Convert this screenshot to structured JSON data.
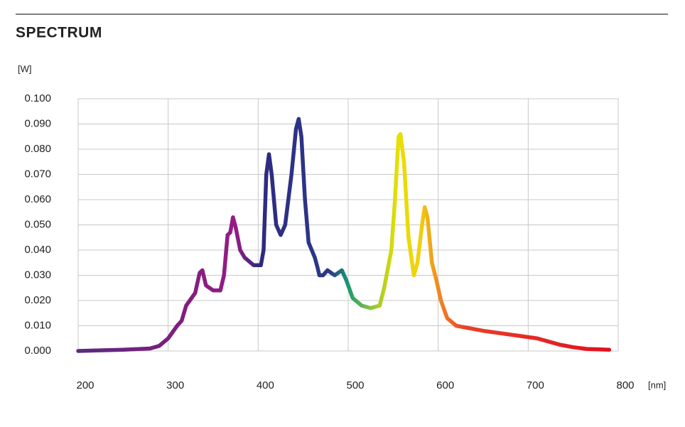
{
  "chart_data": {
    "type": "line",
    "title": "SPECTRUM",
    "y_unit": "[W]",
    "x_unit": "[nm]",
    "x": [
      200,
      250,
      280,
      290,
      300,
      310,
      315,
      320,
      330,
      335,
      338,
      342,
      350,
      358,
      362,
      366,
      369,
      372,
      375,
      380,
      385,
      395,
      403,
      406,
      409,
      412,
      415,
      420,
      425,
      430,
      437,
      442,
      445,
      448,
      452,
      456,
      463,
      466,
      468,
      472,
      477,
      485,
      493,
      498,
      505,
      515,
      525,
      535,
      540,
      548,
      552,
      556,
      558,
      562,
      567,
      573,
      577,
      582,
      585,
      588,
      593,
      598,
      603,
      610,
      620,
      650,
      660,
      700,
      710,
      720,
      735,
      750,
      765,
      790
    ],
    "series": [
      {
        "values": [
          0.0,
          0.0005,
          0.001,
          0.002,
          0.005,
          0.01,
          0.012,
          0.018,
          0.023,
          0.031,
          0.032,
          0.026,
          0.024,
          0.024,
          0.03,
          0.046,
          0.047,
          0.053,
          0.049,
          0.04,
          0.037,
          0.034,
          0.034,
          0.04,
          0.07,
          0.078,
          0.07,
          0.05,
          0.046,
          0.05,
          0.07,
          0.088,
          0.092,
          0.085,
          0.06,
          0.043,
          0.037,
          0.033,
          0.03,
          0.03,
          0.032,
          0.03,
          0.032,
          0.028,
          0.021,
          0.018,
          0.017,
          0.018,
          0.025,
          0.04,
          0.06,
          0.085,
          0.086,
          0.075,
          0.045,
          0.03,
          0.035,
          0.05,
          0.057,
          0.053,
          0.035,
          0.028,
          0.02,
          0.013,
          0.01,
          0.008,
          0.0075,
          0.0055,
          0.005,
          0.004,
          0.0025,
          0.0015,
          0.0008,
          0.0005
        ],
        "color_stops": [
          {
            "at": 200,
            "color": "#5a2a7e"
          },
          {
            "at": 300,
            "color": "#7a1f7e"
          },
          {
            "at": 375,
            "color": "#951c86"
          },
          {
            "at": 400,
            "color": "#2f2a80"
          },
          {
            "at": 480,
            "color": "#2c3a88"
          },
          {
            "at": 500,
            "color": "#1a9a70"
          },
          {
            "at": 525,
            "color": "#8cc43c"
          },
          {
            "at": 555,
            "color": "#e8e000"
          },
          {
            "at": 580,
            "color": "#f0d010"
          },
          {
            "at": 600,
            "color": "#f08a20"
          },
          {
            "at": 630,
            "color": "#e8402a"
          },
          {
            "at": 790,
            "color": "#e0101e"
          }
        ]
      }
    ],
    "xlim": [
      200,
      800
    ],
    "ylim": [
      0,
      0.1
    ],
    "xticks": [
      200,
      300,
      400,
      500,
      600,
      700,
      800
    ],
    "yticks": [
      {
        "value": 0,
        "label": "0.000"
      },
      {
        "value": 0.01,
        "label": "0.010"
      },
      {
        "value": 0.02,
        "label": "0.020"
      },
      {
        "value": 0.03,
        "label": "0.030"
      },
      {
        "value": 0.04,
        "label": "0.040"
      },
      {
        "value": 0.05,
        "label": "0.050"
      },
      {
        "value": 0.06,
        "label": "0.060"
      },
      {
        "value": 0.07,
        "label": "0.070"
      },
      {
        "value": 0.08,
        "label": "0.080"
      },
      {
        "value": 0.09,
        "label": "0.090"
      },
      {
        "value": 0.1,
        "label": "0.100"
      }
    ],
    "grid": true
  }
}
